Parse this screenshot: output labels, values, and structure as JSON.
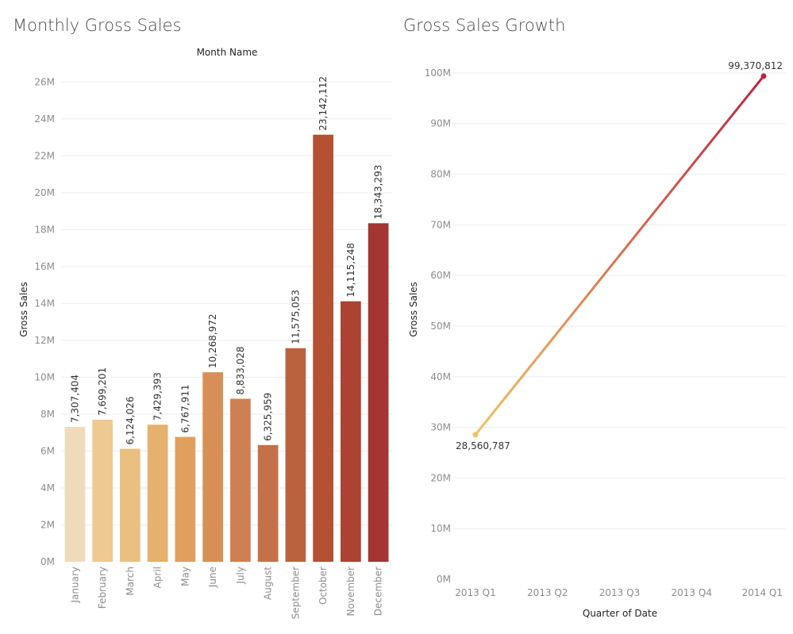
{
  "chart_data": [
    {
      "type": "bar",
      "title": "Monthly Gross Sales",
      "xlabel": "Month Name",
      "ylabel": "Gross Sales",
      "ylim": [
        0,
        27000000
      ],
      "yticks": [
        0,
        2000000,
        4000000,
        6000000,
        8000000,
        10000000,
        12000000,
        14000000,
        16000000,
        18000000,
        20000000,
        22000000,
        24000000,
        26000000
      ],
      "ytick_labels": [
        "0M",
        "2M",
        "4M",
        "6M",
        "8M",
        "10M",
        "12M",
        "14M",
        "16M",
        "18M",
        "20M",
        "22M",
        "24M",
        "26M"
      ],
      "categories": [
        "January",
        "February",
        "March",
        "April",
        "May",
        "June",
        "July",
        "August",
        "September",
        "October",
        "November",
        "December"
      ],
      "values": [
        7307404,
        7699201,
        6124026,
        7429393,
        6767911,
        10268972,
        8833028,
        6325959,
        11575053,
        23142112,
        14115248,
        18343293
      ],
      "value_labels": [
        "7,307,404",
        "7,699,201",
        "6,124,026",
        "7,429,393",
        "6,767,911",
        "10,268,972",
        "8,833,028",
        "6,325,959",
        "11,575,053",
        "23,142,112",
        "14,115,248",
        "18,343,293"
      ],
      "colors": [
        "#efdbbb",
        "#edca91",
        "#eac081",
        "#e6b06d",
        "#e19f5e",
        "#d88f55",
        "#cf8052",
        "#c4714a",
        "#bb613e",
        "#b65033",
        "#ac4232",
        "#a33532"
      ],
      "grid": true
    },
    {
      "type": "line",
      "title": "Gross Sales Growth",
      "xlabel": "Quarter of Date",
      "ylabel": "Gross Sales",
      "ylim": [
        0,
        105000000
      ],
      "yticks": [
        0,
        10000000,
        20000000,
        30000000,
        40000000,
        50000000,
        60000000,
        70000000,
        80000000,
        90000000,
        100000000
      ],
      "ytick_labels": [
        "0M",
        "10M",
        "20M",
        "30M",
        "40M",
        "50M",
        "60M",
        "70M",
        "80M",
        "90M",
        "100M"
      ],
      "x": [
        "2013 Q1",
        "2013 Q2",
        "2013 Q3",
        "2013 Q4",
        "2014 Q1"
      ],
      "points": [
        {
          "x": "2013 Q1",
          "y": 28560787,
          "label": "28,560,787"
        },
        {
          "x": "2014 Q1",
          "y": 99370812,
          "label": "99,370,812"
        }
      ],
      "color_start": "#f0c565",
      "color_end": "#be2142",
      "grid": true
    }
  ]
}
